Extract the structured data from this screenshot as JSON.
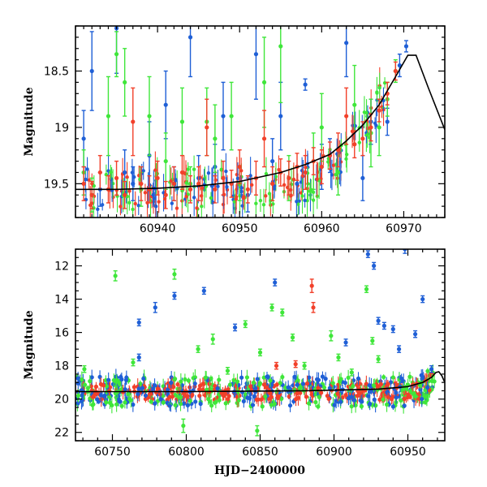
{
  "chart_data": [
    {
      "panel": "top",
      "type": "scatter",
      "ylabel": "Magnitude",
      "xlabel": "",
      "xlim": [
        60930,
        60975
      ],
      "ylim": [
        19.8,
        18.1
      ],
      "y_inverted": true,
      "xticks": [
        60940,
        60950,
        60960,
        60970
      ],
      "yticks": [
        18.5,
        19,
        19.5
      ],
      "ytick_labels": [
        "18.5",
        "19",
        "19.5"
      ],
      "colors": {
        "blue": "#1f5fd6",
        "green": "#3fe63a",
        "red": "#f2402a",
        "model": "#000000"
      },
      "model_curve": {
        "x": [
          60930,
          60935,
          60940,
          60945,
          60950,
          60955,
          60958,
          60961,
          60963,
          60965,
          60967,
          60969,
          60970.5,
          60971.5,
          60973,
          60975
        ],
        "y": [
          19.55,
          19.55,
          19.54,
          19.52,
          19.48,
          19.4,
          19.33,
          19.24,
          19.12,
          18.98,
          18.8,
          18.55,
          18.36,
          18.36,
          18.65,
          19.02
        ]
      },
      "series": [
        {
          "name": "blue",
          "points": [
            [
              60931,
              19.1,
              0.25
            ],
            [
              60932,
              18.5,
              0.35
            ],
            [
              60933,
              19.55,
              0.15
            ],
            [
              60935,
              18.12,
              0.4
            ],
            [
              60936,
              19.4,
              0.2
            ],
            [
              60937,
              19.5,
              0.15
            ],
            [
              60939,
              19.25,
              0.3
            ],
            [
              60941,
              18.8,
              0.3
            ],
            [
              60942,
              19.5,
              0.15
            ],
            [
              60944,
              18.2,
              0.35
            ],
            [
              60945,
              19.45,
              0.2
            ],
            [
              60947,
              19.35,
              0.2
            ],
            [
              60948,
              18.9,
              0.3
            ],
            [
              60951,
              19.6,
              0.15
            ],
            [
              60952,
              18.35,
              0.4
            ],
            [
              60954,
              19.3,
              0.2
            ],
            [
              60955,
              18.9,
              0.3
            ],
            [
              60957,
              19.5,
              0.15
            ],
            [
              60958,
              18.62,
              0.05
            ],
            [
              60960,
              19.35,
              0.2
            ],
            [
              60961,
              19.25,
              0.15
            ],
            [
              60963,
              18.25,
              0.3
            ],
            [
              60965,
              19.45,
              0.2
            ],
            [
              60966,
              18.95,
              0.2
            ],
            [
              60968,
              18.95,
              0.12
            ],
            [
              60969.5,
              18.45,
              0.1
            ],
            [
              60970.3,
              18.28,
              0.05
            ]
          ]
        },
        {
          "name": "green",
          "points": [
            [
              60931,
              19.4,
              0.2
            ],
            [
              60932,
              19.6,
              0.15
            ],
            [
              60934,
              18.9,
              0.35
            ],
            [
              60935,
              18.35,
              0.2
            ],
            [
              60936,
              18.6,
              0.3
            ],
            [
              60938,
              19.55,
              0.15
            ],
            [
              60939,
              18.9,
              0.35
            ],
            [
              60941,
              19.3,
              0.25
            ],
            [
              60943,
              18.95,
              0.3
            ],
            [
              60944,
              19.5,
              0.15
            ],
            [
              60946,
              18.95,
              0.3
            ],
            [
              60947,
              19.1,
              0.3
            ],
            [
              60949,
              18.9,
              0.3
            ],
            [
              60950,
              19.5,
              0.15
            ],
            [
              60953,
              18.6,
              0.4
            ],
            [
              60955,
              18.28,
              0.5
            ],
            [
              60956,
              19.45,
              0.2
            ],
            [
              60959,
              19.3,
              0.25
            ],
            [
              60960,
              19.0,
              0.3
            ],
            [
              60962,
              19.4,
              0.2
            ],
            [
              60964,
              18.8,
              0.35
            ],
            [
              60966,
              19.05,
              0.3
            ],
            [
              60967,
              19.0,
              0.25
            ],
            [
              60968,
              18.75,
              0.15
            ],
            [
              60969,
              18.5,
              0.1
            ]
          ]
        },
        {
          "name": "red",
          "points": [
            [
              60931,
              19.5,
              0.15
            ],
            [
              60932,
              19.6,
              0.12
            ],
            [
              60933,
              19.4,
              0.15
            ],
            [
              60934,
              19.55,
              0.12
            ],
            [
              60935,
              19.45,
              0.15
            ],
            [
              60936,
              19.6,
              0.12
            ],
            [
              60937,
              18.95,
              0.3
            ],
            [
              60938,
              19.5,
              0.15
            ],
            [
              60939,
              19.55,
              0.12
            ],
            [
              60940,
              19.45,
              0.15
            ],
            [
              60941,
              19.6,
              0.12
            ],
            [
              60942,
              19.5,
              0.15
            ],
            [
              60943,
              19.4,
              0.15
            ],
            [
              60944,
              19.55,
              0.12
            ],
            [
              60945,
              19.5,
              0.15
            ],
            [
              60946,
              19.0,
              0.25
            ],
            [
              60947,
              19.55,
              0.12
            ],
            [
              60948,
              19.45,
              0.15
            ],
            [
              60949,
              19.5,
              0.12
            ],
            [
              60950,
              19.35,
              0.15
            ],
            [
              60951,
              19.55,
              0.12
            ],
            [
              60952,
              19.45,
              0.15
            ],
            [
              60953,
              19.1,
              0.25
            ],
            [
              60954,
              19.5,
              0.15
            ],
            [
              60955,
              19.4,
              0.12
            ],
            [
              60956,
              19.45,
              0.15
            ],
            [
              60957,
              19.35,
              0.12
            ],
            [
              60958,
              19.4,
              0.15
            ],
            [
              60959,
              19.3,
              0.12
            ],
            [
              60960,
              19.35,
              0.15
            ],
            [
              60961,
              19.25,
              0.12
            ],
            [
              60962,
              19.2,
              0.15
            ],
            [
              60963,
              18.9,
              0.25
            ],
            [
              60964,
              19.15,
              0.12
            ],
            [
              60965,
              19.1,
              0.15
            ],
            [
              60966,
              19.0,
              0.12
            ],
            [
              60967,
              18.85,
              0.1
            ],
            [
              60968,
              18.7,
              0.1
            ],
            [
              60969,
              18.5,
              0.08
            ]
          ]
        }
      ]
    },
    {
      "panel": "bottom",
      "type": "scatter",
      "ylabel": "Magnitude",
      "xlabel": "HJD−2400000",
      "xlim": [
        60725,
        60975
      ],
      "ylim": [
        22.5,
        11
      ],
      "y_inverted": true,
      "xticks": [
        60750,
        60800,
        60850,
        60900,
        60950
      ],
      "yticks": [
        12,
        14,
        16,
        18,
        20,
        22
      ],
      "ytick_labels": [
        "12",
        "14",
        "16",
        "18",
        "20",
        "22"
      ],
      "model_curve": {
        "x": [
          60725,
          60800,
          60880,
          60930,
          60950,
          60960,
          60966,
          60969,
          60971,
          60973,
          60975
        ],
        "y": [
          19.55,
          19.55,
          19.5,
          19.4,
          19.25,
          19.0,
          18.7,
          18.4,
          18.36,
          18.6,
          19.0
        ]
      },
      "series": [
        {
          "name": "blue",
          "points": [
            [
              60768,
              15.4,
              0.2
            ],
            [
              60768,
              17.5,
              0.2
            ],
            [
              60779,
              14.5,
              0.3
            ],
            [
              60792,
              13.8,
              0.2
            ],
            [
              60812,
              13.5,
              0.2
            ],
            [
              60833,
              15.7,
              0.2
            ],
            [
              60860,
              13.0,
              0.2
            ],
            [
              60908,
              16.6,
              0.2
            ],
            [
              60923,
              11.3,
              0.2
            ],
            [
              60927,
              12.0,
              0.2
            ],
            [
              60930,
              15.3,
              0.2
            ],
            [
              60934,
              15.6,
              0.2
            ],
            [
              60940,
              15.8,
              0.2
            ],
            [
              60944,
              17.0,
              0.2
            ],
            [
              60948,
              11.0,
              0.25
            ],
            [
              60955,
              16.1,
              0.2
            ],
            [
              60960,
              14.0,
              0.2
            ],
            [
              60966,
              18.2,
              0.2
            ]
          ]
        },
        {
          "name": "green",
          "points": [
            [
              60731,
              18.2,
              0.2
            ],
            [
              60752,
              12.6,
              0.3
            ],
            [
              60764,
              17.8,
              0.2
            ],
            [
              60792,
              12.5,
              0.3
            ],
            [
              60798,
              21.6,
              0.4
            ],
            [
              60808,
              17.0,
              0.2
            ],
            [
              60818,
              16.4,
              0.3
            ],
            [
              60828,
              18.3,
              0.2
            ],
            [
              60840,
              15.5,
              0.2
            ],
            [
              60850,
              17.2,
              0.2
            ],
            [
              60858,
              14.5,
              0.2
            ],
            [
              60865,
              14.8,
              0.2
            ],
            [
              60872,
              16.3,
              0.2
            ],
            [
              60880,
              18.0,
              0.2
            ],
            [
              60898,
              16.2,
              0.3
            ],
            [
              60903,
              17.5,
              0.2
            ],
            [
              60912,
              18.4,
              0.2
            ],
            [
              60922,
              13.4,
              0.2
            ],
            [
              60926,
              16.5,
              0.2
            ],
            [
              60930,
              17.6,
              0.2
            ],
            [
              60848,
              21.9,
              0.3
            ]
          ]
        },
        {
          "name": "red",
          "points": [
            [
              60885,
              13.2,
              0.4
            ],
            [
              60886,
              14.5,
              0.3
            ],
            [
              60861,
              18.0,
              0.2
            ],
            [
              60874,
              17.9,
              0.2
            ]
          ]
        }
      ]
    }
  ]
}
